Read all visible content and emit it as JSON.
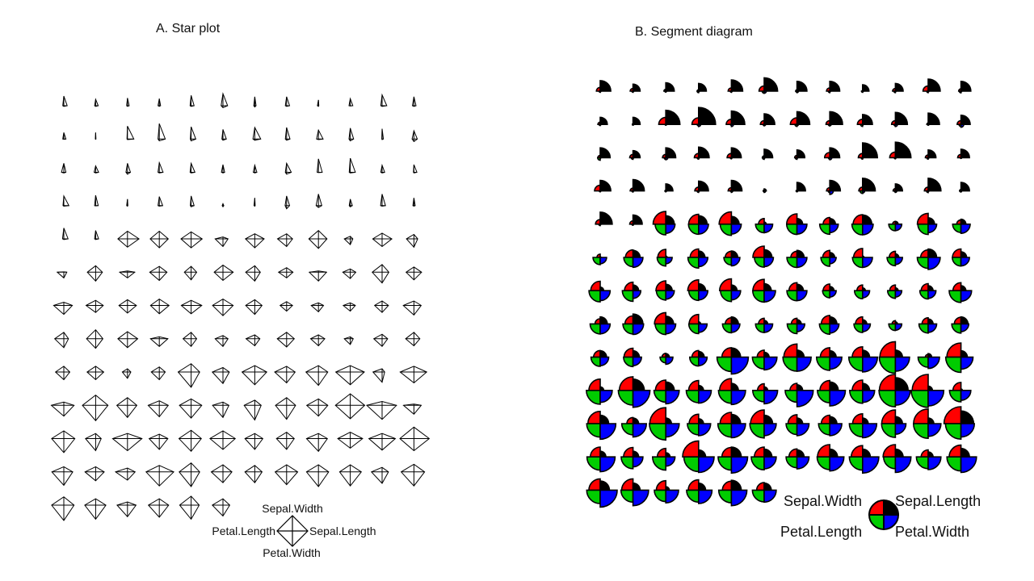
{
  "chart_data": [
    {
      "type": "star",
      "title": "A. Star plot",
      "variables": [
        "Sepal.Length",
        "Sepal.Width",
        "Petal.Length",
        "Petal.Width"
      ],
      "n_stars": 150,
      "columns": 12,
      "scaling": "each variable scaled to [0,1] by (x - min)/(max - min)",
      "key": {
        "top": "Sepal.Width",
        "left": "Petal.Length",
        "right": "Sepal.Length",
        "bottom": "Petal.Width"
      }
    },
    {
      "type": "segment",
      "title": "B. Segment diagram",
      "variables": [
        "Sepal.Length",
        "Sepal.Width",
        "Petal.Length",
        "Petal.Width"
      ],
      "n_segments": 150,
      "columns": 12,
      "segment_colors": {
        "Sepal.Length": "#ff0000",
        "Sepal.Width": "#000000",
        "Petal.Length": "#00cc00",
        "Petal.Width": "#0000ff"
      },
      "key": {
        "top_left": "Sepal.Width",
        "top_right": "Sepal.Length",
        "bottom_left": "Petal.Length",
        "bottom_right": "Petal.Width"
      }
    }
  ],
  "data": {
    "sepal_length": [
      5.1,
      4.9,
      4.7,
      4.6,
      5.0,
      5.4,
      4.6,
      5.0,
      4.4,
      4.9,
      5.4,
      4.8,
      4.8,
      4.3,
      5.8,
      5.7,
      5.4,
      5.1,
      5.7,
      5.1,
      5.4,
      5.1,
      4.6,
      5.1,
      4.8,
      5.0,
      5.0,
      5.2,
      5.2,
      4.7,
      4.8,
      5.4,
      5.2,
      5.5,
      4.9,
      5.0,
      5.5,
      4.9,
      4.4,
      5.1,
      5.0,
      4.5,
      4.4,
      5.0,
      5.1,
      4.8,
      5.1,
      4.6,
      5.3,
      5.0,
      7.0,
      6.4,
      6.9,
      5.5,
      6.5,
      5.7,
      6.3,
      4.9,
      6.6,
      5.2,
      5.0,
      5.9,
      6.0,
      6.1,
      5.6,
      6.7,
      5.6,
      5.8,
      6.2,
      5.6,
      5.9,
      6.1,
      6.3,
      6.1,
      6.4,
      6.6,
      6.8,
      6.7,
      6.0,
      5.7,
      5.5,
      5.5,
      5.8,
      6.0,
      5.4,
      6.0,
      6.7,
      6.3,
      5.6,
      5.5,
      5.5,
      6.1,
      5.8,
      5.0,
      5.6,
      5.7,
      5.7,
      6.2,
      5.1,
      5.7,
      6.3,
      5.8,
      7.1,
      6.3,
      6.5,
      7.6,
      4.9,
      7.3,
      6.7,
      7.2,
      6.5,
      6.4,
      6.8,
      5.7,
      5.8,
      6.4,
      6.5,
      7.7,
      7.7,
      6.0,
      6.9,
      5.6,
      7.7,
      6.3,
      6.7,
      7.2,
      6.2,
      6.1,
      6.4,
      7.2,
      7.4,
      7.9,
      6.4,
      6.3,
      6.1,
      7.7,
      6.3,
      6.4,
      6.0,
      6.9,
      6.7,
      6.9,
      5.8,
      6.8,
      6.7,
      6.7,
      6.3,
      6.5,
      6.2,
      5.9
    ],
    "sepal_width": [
      3.5,
      3.0,
      3.2,
      3.1,
      3.6,
      3.9,
      3.4,
      3.4,
      2.9,
      3.1,
      3.7,
      3.4,
      3.0,
      3.0,
      4.0,
      4.4,
      3.9,
      3.5,
      3.8,
      3.8,
      3.4,
      3.7,
      3.6,
      3.3,
      3.4,
      3.0,
      3.4,
      3.5,
      3.4,
      3.2,
      3.1,
      3.4,
      4.1,
      4.2,
      3.1,
      3.2,
      3.5,
      3.6,
      3.0,
      3.4,
      3.5,
      2.3,
      3.2,
      3.5,
      3.8,
      3.0,
      3.8,
      3.2,
      3.7,
      3.3,
      3.2,
      3.2,
      3.1,
      2.3,
      2.8,
      2.8,
      3.3,
      2.4,
      2.9,
      2.7,
      2.0,
      3.0,
      2.2,
      2.9,
      2.9,
      3.1,
      3.0,
      2.7,
      2.2,
      2.5,
      3.2,
      2.8,
      2.5,
      2.8,
      2.9,
      3.0,
      2.8,
      3.0,
      2.9,
      2.6,
      2.4,
      2.4,
      2.7,
      2.7,
      3.0,
      3.4,
      3.1,
      2.3,
      3.0,
      2.5,
      2.6,
      3.0,
      2.6,
      2.3,
      2.7,
      3.0,
      2.9,
      2.9,
      2.5,
      2.8,
      3.3,
      2.7,
      3.0,
      2.9,
      3.0,
      3.0,
      2.5,
      2.9,
      2.5,
      3.6,
      3.2,
      2.7,
      3.0,
      2.5,
      2.8,
      3.2,
      3.0,
      3.8,
      2.6,
      2.2,
      3.2,
      2.8,
      2.8,
      2.7,
      3.3,
      3.2,
      2.8,
      3.0,
      2.8,
      3.0,
      2.8,
      3.8,
      2.8,
      2.8,
      2.6,
      3.0,
      3.4,
      3.1,
      3.0,
      3.1,
      3.1,
      3.1,
      2.7,
      3.2,
      3.3,
      3.0,
      2.5,
      3.0,
      3.4,
      3.0
    ],
    "petal_length": [
      1.4,
      1.4,
      1.3,
      1.5,
      1.4,
      1.7,
      1.4,
      1.5,
      1.4,
      1.5,
      1.5,
      1.6,
      1.4,
      1.1,
      1.2,
      1.5,
      1.3,
      1.4,
      1.7,
      1.5,
      1.7,
      1.5,
      1.0,
      1.7,
      1.9,
      1.6,
      1.6,
      1.5,
      1.4,
      1.6,
      1.6,
      1.5,
      1.5,
      1.4,
      1.5,
      1.2,
      1.3,
      1.4,
      1.3,
      1.5,
      1.3,
      1.3,
      1.3,
      1.6,
      1.9,
      1.4,
      1.6,
      1.4,
      1.5,
      1.4,
      4.7,
      4.5,
      4.9,
      4.0,
      4.6,
      4.5,
      4.7,
      3.3,
      4.6,
      3.9,
      3.5,
      4.2,
      4.0,
      4.7,
      3.6,
      4.4,
      4.5,
      4.1,
      4.5,
      3.9,
      4.8,
      4.0,
      4.9,
      4.7,
      4.3,
      4.4,
      4.8,
      5.0,
      4.5,
      3.5,
      3.8,
      3.7,
      3.9,
      5.1,
      4.5,
      4.5,
      4.7,
      4.4,
      4.1,
      4.0,
      4.4,
      4.6,
      4.0,
      3.3,
      4.2,
      4.2,
      4.2,
      4.3,
      3.0,
      4.1,
      6.0,
      5.1,
      5.9,
      5.6,
      5.8,
      6.6,
      4.5,
      6.3,
      5.8,
      6.1,
      5.1,
      5.3,
      5.5,
      5.0,
      5.1,
      5.3,
      5.5,
      6.7,
      6.9,
      5.0,
      5.7,
      4.9,
      6.7,
      4.9,
      5.7,
      6.0,
      4.8,
      4.9,
      5.6,
      5.8,
      6.1,
      6.4,
      5.6,
      5.1,
      5.6,
      6.1,
      5.6,
      5.5,
      4.8,
      5.4,
      5.6,
      5.1,
      5.1,
      5.9,
      5.7,
      5.2,
      5.0,
      5.2,
      5.4,
      5.1
    ],
    "petal_width": [
      0.2,
      0.2,
      0.2,
      0.2,
      0.2,
      0.4,
      0.3,
      0.2,
      0.2,
      0.1,
      0.2,
      0.2,
      0.1,
      0.1,
      0.2,
      0.4,
      0.4,
      0.3,
      0.3,
      0.3,
      0.2,
      0.4,
      0.2,
      0.5,
      0.2,
      0.2,
      0.4,
      0.2,
      0.2,
      0.2,
      0.2,
      0.4,
      0.1,
      0.2,
      0.2,
      0.2,
      0.2,
      0.1,
      0.2,
      0.2,
      0.3,
      0.3,
      0.2,
      0.6,
      0.4,
      0.3,
      0.2,
      0.2,
      0.2,
      0.2,
      1.4,
      1.5,
      1.5,
      1.3,
      1.5,
      1.3,
      1.6,
      1.0,
      1.3,
      1.4,
      1.0,
      1.5,
      1.0,
      1.4,
      1.3,
      1.4,
      1.5,
      1.0,
      1.5,
      1.1,
      1.8,
      1.3,
      1.5,
      1.2,
      1.3,
      1.4,
      1.4,
      1.7,
      1.5,
      1.0,
      1.1,
      1.0,
      1.2,
      1.6,
      1.5,
      1.6,
      1.5,
      1.3,
      1.3,
      1.3,
      1.2,
      1.4,
      1.2,
      1.0,
      1.3,
      1.2,
      1.3,
      1.3,
      1.1,
      1.3,
      2.5,
      1.9,
      2.1,
      1.8,
      2.2,
      2.1,
      1.7,
      1.8,
      1.8,
      2.5,
      2.0,
      1.9,
      2.1,
      2.0,
      2.4,
      2.3,
      1.8,
      2.2,
      2.3,
      1.5,
      2.3,
      2.0,
      2.0,
      1.8,
      2.1,
      1.8,
      1.8,
      1.8,
      2.1,
      1.6,
      1.9,
      2.0,
      2.2,
      1.5,
      1.4,
      2.3,
      2.4,
      1.8,
      1.8,
      2.1,
      2.4,
      2.3,
      1.9,
      2.3,
      2.5,
      2.3,
      1.9,
      2.0,
      2.3,
      1.8
    ]
  }
}
